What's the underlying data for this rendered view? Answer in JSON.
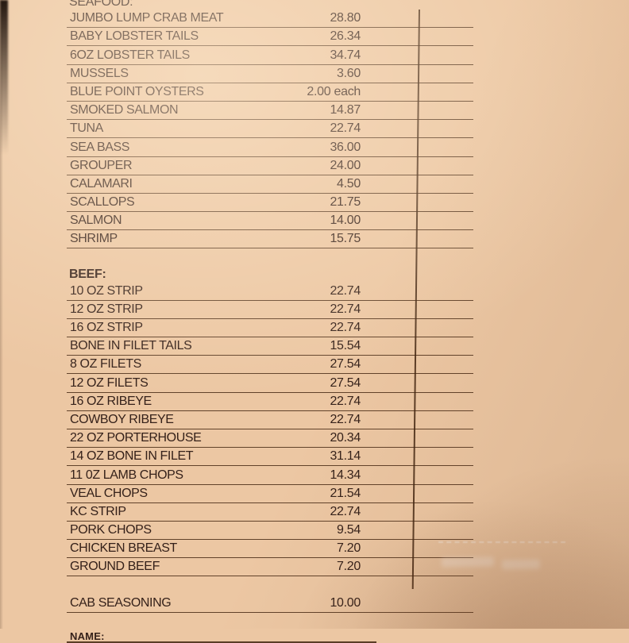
{
  "colors": {
    "paper": "#ecc7a3",
    "ink": "#35211a",
    "line": "#4b2b16"
  },
  "document": {
    "sections": [
      {
        "heading": "SEAFOOD:",
        "bold": false,
        "items": [
          {
            "name": "JUMBO LUMP CRAB MEAT",
            "price": "28.80"
          },
          {
            "name": "BABY LOBSTER TAILS",
            "price": "26.34"
          },
          {
            "name": "6OZ LOBSTER TAILS",
            "price": "34.74"
          },
          {
            "name": "MUSSELS",
            "price": "3.60"
          },
          {
            "name": "BLUE POINT OYSTERS",
            "price": "2.00 each"
          },
          {
            "name": "SMOKED SALMON",
            "price": "14.87"
          },
          {
            "name": "TUNA",
            "price": "22.74"
          },
          {
            "name": "SEA BASS",
            "price": "36.00"
          },
          {
            "name": "GROUPER",
            "price": "24.00"
          },
          {
            "name": "CALAMARI",
            "price": "4.50"
          },
          {
            "name": "SCALLOPS",
            "price": "21.75"
          },
          {
            "name": "SALMON",
            "price": "14.00"
          },
          {
            "name": "SHRIMP",
            "price": "15.75"
          }
        ]
      },
      {
        "heading": "BEEF:",
        "bold": true,
        "items": [
          {
            "name": "10 OZ STRIP",
            "price": "22.74"
          },
          {
            "name": "12 OZ STRIP",
            "price": "22.74"
          },
          {
            "name": "16 OZ STRIP",
            "price": "22.74"
          },
          {
            "name": "BONE IN FILET TAILS",
            "price": "15.54"
          },
          {
            "name": "8 OZ FILETS",
            "price": "27.54"
          },
          {
            "name": "12 OZ FILETS",
            "price": "27.54"
          },
          {
            "name": "16 OZ RIBEYE",
            "price": "22.74"
          },
          {
            "name": "COWBOY RIBEYE",
            "price": "22.74"
          },
          {
            "name": "22 OZ PORTERHOUSE",
            "price": "20.34"
          },
          {
            "name": "14 OZ BONE IN FILET",
            "price": "31.14"
          },
          {
            "name": "11 0Z LAMB CHOPS",
            "price": "14.34"
          },
          {
            "name": "VEAL CHOPS",
            "price": "21.54"
          },
          {
            "name": "KC STRIP",
            "price": "22.74"
          },
          {
            "name": "PORK CHOPS",
            "price": "9.54"
          },
          {
            "name": "CHICKEN BREAST",
            "price": "7.20"
          },
          {
            "name": "GROUND BEEF",
            "price": "7.20"
          }
        ]
      }
    ],
    "extra_item": {
      "name": "CAB SEASONING",
      "price": "10.00"
    },
    "footer": {
      "name_label": "NAME:"
    }
  }
}
